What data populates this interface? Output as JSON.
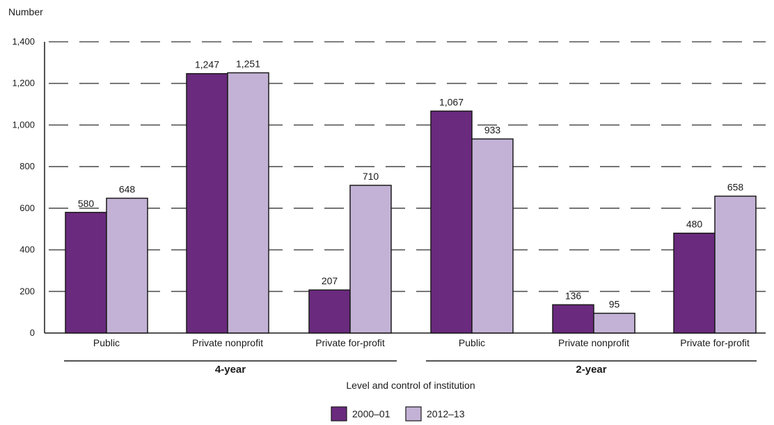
{
  "chart_data": {
    "type": "bar",
    "ylabel": "Number",
    "xlabel": "Level and control of institution",
    "ylim": [
      0,
      1400
    ],
    "yticks": [
      0,
      200,
      400,
      600,
      800,
      1000,
      1200,
      1400
    ],
    "ytick_labels": [
      "0",
      "200",
      "400",
      "600",
      "800",
      "1,000",
      "1,200",
      "1,400"
    ],
    "grid": true,
    "legend_position": "bottom-center",
    "groups": [
      {
        "label": "4-year",
        "categories": [
          "Public",
          "Private nonprofit",
          "Private for-profit"
        ]
      },
      {
        "label": "2-year",
        "categories": [
          "Public",
          "Private nonprofit",
          "Private for-profit"
        ]
      }
    ],
    "series": [
      {
        "name": "2000–01",
        "color": "#6a2a7e",
        "values": [
          580,
          1247,
          207,
          1067,
          136,
          480
        ],
        "labels": [
          "580",
          "1,247",
          "207",
          "1,067",
          "136",
          "480"
        ]
      },
      {
        "name": "2012–13",
        "color": "#c3b2d6",
        "values": [
          648,
          1251,
          710,
          933,
          95,
          658
        ],
        "labels": [
          "648",
          "1,251",
          "710",
          "933",
          "95",
          "658"
        ]
      }
    ]
  }
}
